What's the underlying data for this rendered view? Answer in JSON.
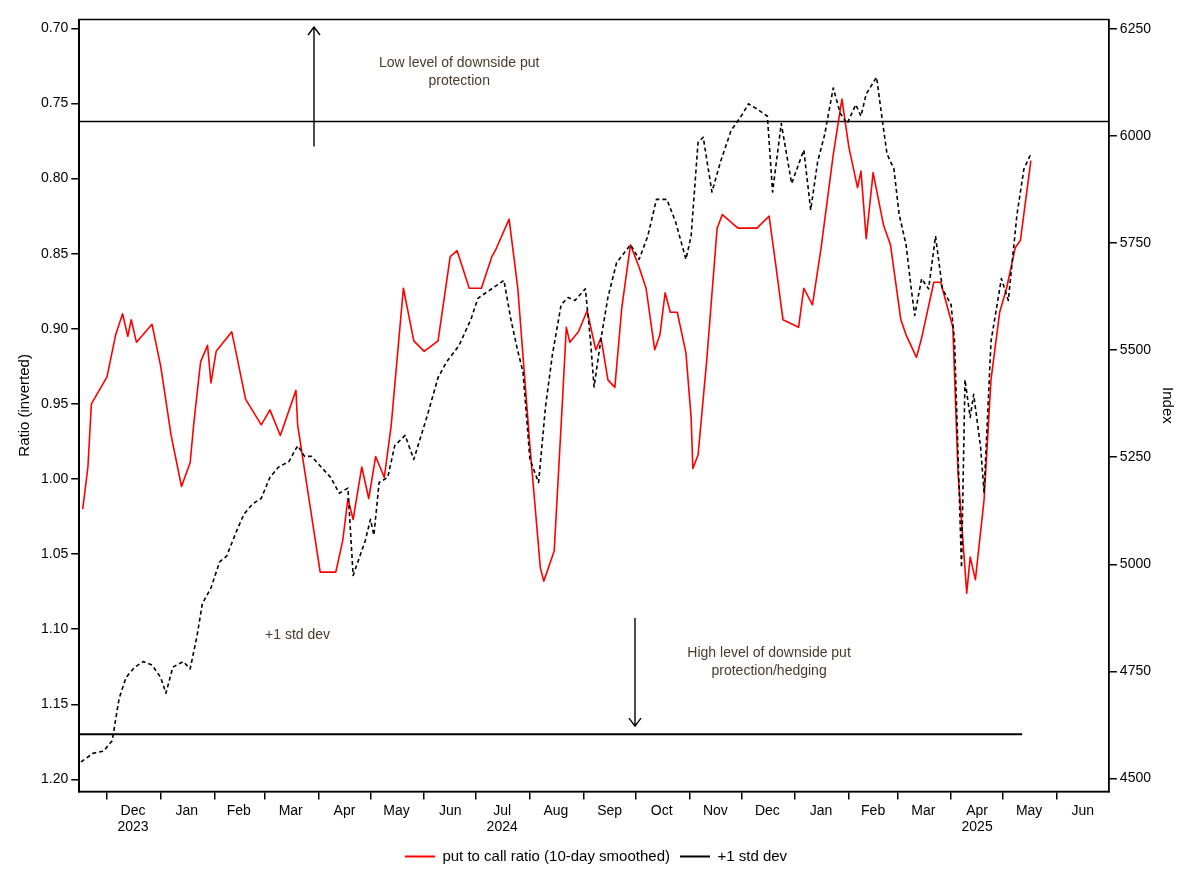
{
  "chart_data": {
    "type": "line",
    "ylabel": "Ratio (inverted)",
    "y2label": "Index",
    "legend": "bottom",
    "xlim": [
      "2023-11-15",
      "2025-07-01"
    ],
    "xticks": [
      {
        "value": "2023-12-01",
        "label": null
      },
      {
        "value": "2024-01-01",
        "label": null
      },
      {
        "value": "2024-02-01",
        "label": null
      },
      {
        "value": "2024-03-01",
        "label": null
      },
      {
        "value": "2024-04-01",
        "label": null
      },
      {
        "value": "2024-05-01",
        "label": null
      },
      {
        "value": "2024-06-01",
        "label": null
      },
      {
        "value": "2024-07-01",
        "label": null
      },
      {
        "value": "2024-08-01",
        "label": null
      },
      {
        "value": "2024-09-01",
        "label": null
      },
      {
        "value": "2024-10-01",
        "label": null
      },
      {
        "value": "2024-11-01",
        "label": null
      },
      {
        "value": "2024-12-01",
        "label": null
      },
      {
        "value": "2025-01-01",
        "label": null
      },
      {
        "value": "2025-02-01",
        "label": null
      },
      {
        "value": "2025-03-01",
        "label": null
      },
      {
        "value": "2025-04-01",
        "label": null
      },
      {
        "value": "2025-05-01",
        "label": null
      },
      {
        "value": "2025-06-01",
        "label": null
      },
      {
        "value": "2023-12-16",
        "label": "Dec\n2023"
      },
      {
        "value": "2024-01-16",
        "label": "Jan"
      },
      {
        "value": "2024-02-15",
        "label": "Feb"
      },
      {
        "value": "2024-03-16",
        "label": "Mar"
      },
      {
        "value": "2024-04-16",
        "label": "Apr"
      },
      {
        "value": "2024-05-16",
        "label": "May"
      },
      {
        "value": "2024-06-16",
        "label": "Jun"
      },
      {
        "value": "2024-07-16",
        "label": "Jul\n2024"
      },
      {
        "value": "2024-08-16",
        "label": "Aug"
      },
      {
        "value": "2024-09-16",
        "label": "Sep"
      },
      {
        "value": "2024-10-16",
        "label": "Oct"
      },
      {
        "value": "2024-11-16",
        "label": "Nov"
      },
      {
        "value": "2024-12-16",
        "label": "Dec"
      },
      {
        "value": "2025-01-16",
        "label": "Jan"
      },
      {
        "value": "2025-02-15",
        "label": "Feb"
      },
      {
        "value": "2025-03-16",
        "label": "Mar"
      },
      {
        "value": "2025-04-16",
        "label": "Apr\n2025"
      },
      {
        "value": "2025-05-16",
        "label": "May"
      },
      {
        "value": "2025-06-16",
        "label": "Jun"
      }
    ],
    "ylim": [
      1.208,
      0.694
    ],
    "yticks": [
      {
        "value": 0.7,
        "label": "0.70"
      },
      {
        "value": 0.75,
        "label": "0.75"
      },
      {
        "value": 0.8,
        "label": "0.80"
      },
      {
        "value": 0.85,
        "label": "0.85"
      },
      {
        "value": 0.9,
        "label": "0.90"
      },
      {
        "value": 0.95,
        "label": "0.95"
      },
      {
        "value": 1.0,
        "label": "1.00"
      },
      {
        "value": 1.05,
        "label": "1.05"
      },
      {
        "value": 1.1,
        "label": "1.10"
      },
      {
        "value": 1.15,
        "label": "1.15"
      },
      {
        "value": 1.2,
        "label": "1.20"
      }
    ],
    "y2lim": [
      4470,
      6272
    ],
    "y2ticks": [
      4500,
      4750,
      5000,
      5250,
      5500,
      5750,
      6000,
      6250
    ],
    "series": [
      {
        "color": "#000000",
        "axis": "y2",
        "line_style": "dashed",
        "x": [
          "2023-11-16",
          "2023-11-23",
          "2023-11-29",
          "2023-12-04",
          "2023-12-08",
          "2023-12-12",
          "2023-12-17",
          "2023-12-22",
          "2023-12-27",
          "2024-01-01",
          "2024-01-04",
          "2024-01-08",
          "2024-01-14",
          "2024-01-18",
          "2024-01-22",
          "2024-01-25",
          "2024-01-30",
          "2024-02-04",
          "2024-02-08",
          "2024-02-14",
          "2024-02-18",
          "2024-02-23",
          "2024-02-28",
          "2024-03-04",
          "2024-03-09",
          "2024-03-15",
          "2024-03-20",
          "2024-03-24",
          "2024-03-28",
          "2024-04-08",
          "2024-04-13",
          "2024-04-18",
          "2024-04-21",
          "2024-04-28",
          "2024-05-01",
          "2024-05-03",
          "2024-05-06",
          "2024-05-11",
          "2024-05-15",
          "2024-05-21",
          "2024-05-26",
          "2024-06-03",
          "2024-06-09",
          "2024-06-14",
          "2024-06-21",
          "2024-06-28",
          "2024-07-02",
          "2024-07-17",
          "2024-07-21",
          "2024-07-25",
          "2024-07-28",
          "2024-08-01",
          "2024-08-06",
          "2024-08-10",
          "2024-08-14",
          "2024-08-19",
          "2024-08-23",
          "2024-08-27",
          "2024-09-02",
          "2024-09-05",
          "2024-09-07",
          "2024-09-11",
          "2024-09-15",
          "2024-09-20",
          "2024-09-28",
          "2024-10-03",
          "2024-10-08",
          "2024-10-13",
          "2024-10-19",
          "2024-10-24",
          "2024-10-30",
          "2024-11-02",
          "2024-11-06",
          "2024-11-09",
          "2024-11-14",
          "2024-11-19",
          "2024-11-25",
          "2024-12-02",
          "2024-12-05",
          "2024-12-10",
          "2024-12-16",
          "2024-12-19",
          "2024-12-24",
          "2024-12-30",
          "2025-01-06",
          "2025-01-10",
          "2025-01-14",
          "2025-01-18",
          "2025-01-23",
          "2025-01-27",
          "2025-01-31",
          "2025-02-05",
          "2025-02-08",
          "2025-02-11",
          "2025-02-17",
          "2025-02-20",
          "2025-02-23",
          "2025-02-27",
          "2025-03-02",
          "2025-03-06",
          "2025-03-09",
          "2025-03-11",
          "2025-03-15",
          "2025-03-19",
          "2025-03-23",
          "2025-03-27",
          "2025-04-01",
          "2025-04-03",
          "2025-04-07",
          "2025-04-09",
          "2025-04-12",
          "2025-04-14",
          "2025-04-18",
          "2025-04-20",
          "2025-04-24",
          "2025-04-30",
          "2025-05-04",
          "2025-05-09",
          "2025-05-13",
          "2025-05-17"
        ],
        "values": [
          4539,
          4559,
          4564,
          4588,
          4687,
          4736,
          4760,
          4773,
          4765,
          4736,
          4699,
          4760,
          4773,
          4756,
          4834,
          4908,
          4945,
          5006,
          5019,
          5080,
          5117,
          5141,
          5154,
          5203,
          5227,
          5240,
          5277,
          5252,
          5252,
          5203,
          5166,
          5178,
          4974,
          5055,
          5105,
          5068,
          5191,
          5203,
          5277,
          5301,
          5245,
          5350,
          5436,
          5473,
          5510,
          5572,
          5621,
          5663,
          5572,
          5498,
          5449,
          5245,
          5191,
          5368,
          5490,
          5606,
          5623,
          5616,
          5643,
          5520,
          5414,
          5527,
          5623,
          5704,
          5746,
          5712,
          5766,
          5852,
          5852,
          5800,
          5712,
          5766,
          5985,
          5997,
          5869,
          5940,
          6012,
          6053,
          6075,
          6063,
          6046,
          5869,
          6029,
          5889,
          5967,
          5827,
          5940,
          6002,
          6112,
          6053,
          6029,
          6073,
          6046,
          6098,
          6137,
          6046,
          5958,
          5923,
          5817,
          5746,
          5643,
          5581,
          5667,
          5643,
          5766,
          5643,
          5606,
          5520,
          4992,
          5431,
          5343,
          5397,
          5274,
          5168,
          5520,
          5667,
          5616,
          5817,
          5923,
          5958
        ]
      },
      {
        "name": "put to call ratio (10-day smoothed)",
        "color": "#ff0000",
        "x": [
          "2023-11-17",
          "2023-11-20",
          "2023-11-22",
          "2023-12-01",
          "2023-12-06",
          "2023-12-10",
          "2023-12-13",
          "2023-12-15",
          "2023-12-18",
          "2023-12-27",
          "2024-01-01",
          "2024-01-07",
          "2024-01-13",
          "2024-01-18",
          "2024-01-20",
          "2024-01-24",
          "2024-01-28",
          "2024-01-30",
          "2024-02-02",
          "2024-02-11",
          "2024-02-19",
          "2024-02-28",
          "2024-03-04",
          "2024-03-10",
          "2024-03-19",
          "2024-03-20",
          "2024-04-02",
          "2024-04-11",
          "2024-04-15",
          "2024-04-18",
          "2024-04-21",
          "2024-04-26",
          "2024-04-30",
          "2024-05-04",
          "2024-05-09",
          "2024-05-13",
          "2024-05-20",
          "2024-05-26",
          "2024-06-01",
          "2024-06-09",
          "2024-06-16",
          "2024-06-20",
          "2024-06-27",
          "2024-07-04",
          "2024-07-10",
          "2024-07-12",
          "2024-07-20",
          "2024-07-25",
          "2024-08-01",
          "2024-08-07",
          "2024-08-09",
          "2024-08-15",
          "2024-08-20",
          "2024-08-22",
          "2024-08-24",
          "2024-08-29",
          "2024-09-03",
          "2024-09-08",
          "2024-09-11",
          "2024-09-15",
          "2024-09-19",
          "2024-09-23",
          "2024-09-28",
          "2024-10-03",
          "2024-10-07",
          "2024-10-12",
          "2024-10-15",
          "2024-10-18",
          "2024-10-21",
          "2024-10-25",
          "2024-10-30",
          "2024-11-02",
          "2024-11-03",
          "2024-11-06",
          "2024-11-11",
          "2024-11-17",
          "2024-11-20",
          "2024-11-29",
          "2024-12-10",
          "2024-12-17",
          "2024-12-21",
          "2024-12-25",
          "2025-01-03",
          "2025-01-06",
          "2025-01-11",
          "2025-01-16",
          "2025-01-23",
          "2025-01-28",
          "2025-02-01",
          "2025-02-06",
          "2025-02-08",
          "2025-02-11",
          "2025-02-15",
          "2025-02-21",
          "2025-02-25",
          "2025-03-03",
          "2025-03-06",
          "2025-03-12",
          "2025-03-15",
          "2025-03-22",
          "2025-03-26",
          "2025-04-02",
          "2025-04-05",
          "2025-04-10",
          "2025-04-12",
          "2025-04-15",
          "2025-04-20",
          "2025-04-24",
          "2025-04-29",
          "2025-05-03",
          "2025-05-08",
          "2025-05-11",
          "2025-05-17"
        ],
        "values": [
          1.02,
          0.992,
          0.95,
          0.932,
          0.904,
          0.89,
          0.905,
          0.894,
          0.909,
          0.897,
          0.925,
          0.971,
          1.005,
          0.989,
          0.964,
          0.922,
          0.911,
          0.936,
          0.915,
          0.902,
          0.947,
          0.964,
          0.954,
          0.971,
          0.941,
          0.964,
          1.062,
          1.062,
          1.041,
          1.013,
          1.027,
          0.992,
          1.013,
          0.985,
          0.999,
          0.964,
          0.873,
          0.908,
          0.915,
          0.908,
          0.852,
          0.848,
          0.873,
          0.873,
          0.852,
          0.848,
          0.827,
          0.873,
          0.978,
          1.059,
          1.068,
          1.048,
          0.943,
          0.899,
          0.909,
          0.902,
          0.888,
          0.914,
          0.906,
          0.934,
          0.939,
          0.886,
          0.844,
          0.859,
          0.873,
          0.914,
          0.904,
          0.876,
          0.889,
          0.889,
          0.916,
          0.959,
          0.993,
          0.984,
          0.921,
          0.833,
          0.824,
          0.833,
          0.833,
          0.825,
          0.859,
          0.894,
          0.899,
          0.873,
          0.884,
          0.846,
          0.784,
          0.747,
          0.779,
          0.806,
          0.795,
          0.84,
          0.796,
          0.831,
          0.844,
          0.894,
          0.904,
          0.919,
          0.906,
          0.869,
          0.869,
          0.899,
          0.996,
          1.076,
          1.052,
          1.067,
          1.014,
          0.934,
          0.889,
          0.873,
          0.846,
          0.841,
          0.788
        ]
      },
      {
        "name": "+1 std dev",
        "color": "#000000",
        "x": [
          "2023-11-15",
          "2025-07-01"
        ],
        "values": [
          0.762,
          0.762
        ]
      },
      {
        "color": "#000000",
        "x": [
          "2023-11-15",
          "2025-05-12"
        ],
        "values": [
          1.17,
          1.17
        ]
      }
    ],
    "annotations": [
      "Low level of downside put protection",
      "+1 std dev",
      "High level of downside put protection/hedging"
    ]
  }
}
